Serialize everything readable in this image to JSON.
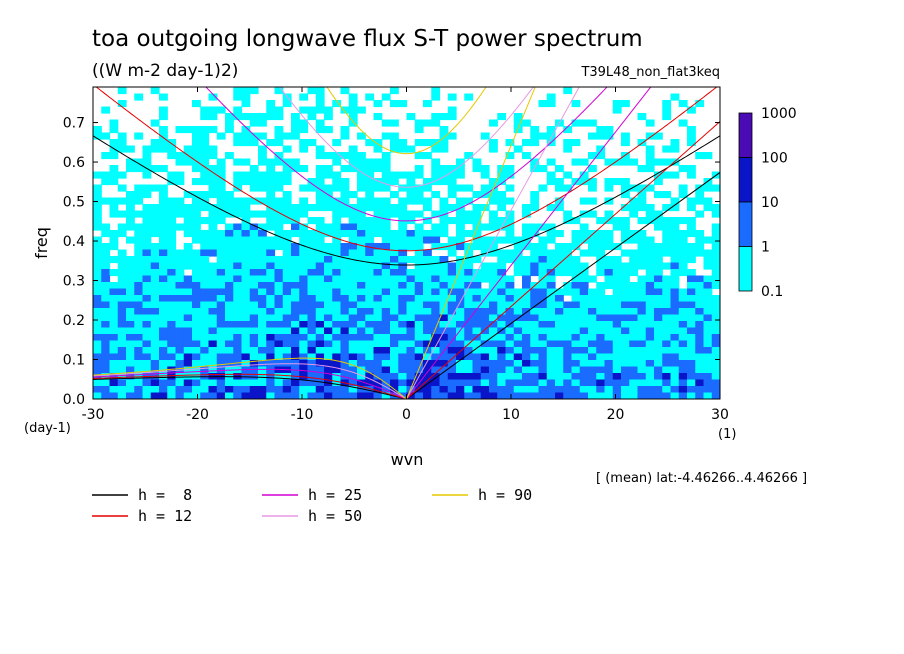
{
  "title": "toa outgoing longwave flux S-T power spectrum",
  "units": "((W m-2 day-1)2)",
  "experiment": "T39L48_non_flat3keq",
  "region_note": "[ (mean) lat:-4.46266..4.46266 ]",
  "chart_data": {
    "type": "heatmap",
    "title": "toa outgoing longwave flux S-T power spectrum",
    "xlabel": "wvn",
    "ylabel": "freq",
    "x_unit": "(1)",
    "y_unit": "(day-1)",
    "xlim": [
      -30,
      30
    ],
    "ylim": [
      0,
      0.79
    ],
    "xticks": [
      "-30",
      "-20",
      "-10",
      "0",
      "10",
      "20",
      "30"
    ],
    "yticks": [
      "0.0",
      "0.1",
      "0.2",
      "0.3",
      "0.4",
      "0.5",
      "0.6",
      "0.7"
    ],
    "colorbar": {
      "levels": [
        "0.1",
        "1",
        "10",
        "100",
        "1000"
      ],
      "colors": [
        "#00ffff",
        "#1a6bff",
        "#0a14c8",
        "#4a0ab4"
      ]
    },
    "dispersion_curves": [
      {
        "label": "h =  8",
        "h": 8,
        "color": "#000000"
      },
      {
        "label": "h = 12",
        "h": 12,
        "color": "#e60000"
      },
      {
        "label": "h = 25",
        "h": 25,
        "color": "#d400d4"
      },
      {
        "label": "h = 50",
        "h": 50,
        "color": "#e699e6"
      },
      {
        "label": "h = 90",
        "h": 90,
        "color": "#e6c800"
      }
    ]
  }
}
